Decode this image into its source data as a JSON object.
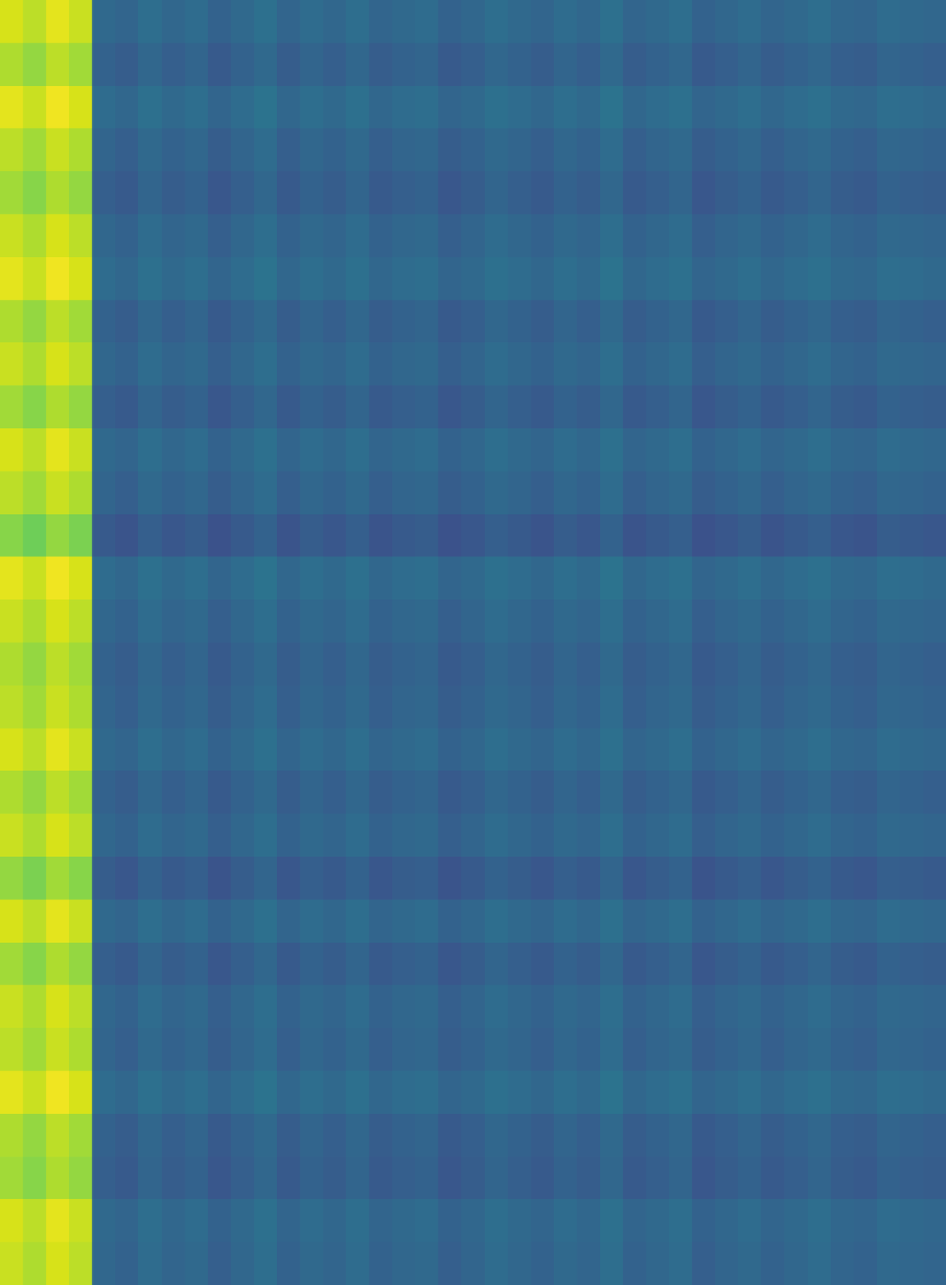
{
  "chart_data": {
    "type": "heatmap",
    "color": "Viridis",
    "tick_labels": false,
    "zlim": [
      0,
      100
    ],
    "cells": [
      [
        94,
        90,
        96,
        92,
        34,
        32,
        36,
        33,
        35,
        31,
        34,
        37,
        32,
        35,
        33,
        36,
        32,
        34,
        35,
        31,
        33,
        36,
        34,
        32,
        35,
        33,
        37,
        32,
        34,
        36,
        31,
        33,
        35,
        32,
        34,
        36,
        33,
        32,
        35,
        34,
        33
      ],
      [
        88,
        84,
        90,
        86,
        31,
        29,
        33,
        30,
        32,
        28,
        31,
        34,
        29,
        32,
        30,
        33,
        29,
        31,
        32,
        28,
        30,
        33,
        31,
        29,
        32,
        30,
        34,
        29,
        31,
        33,
        28,
        30,
        32,
        29,
        31,
        33,
        30,
        29,
        32,
        31,
        30
      ],
      [
        96,
        92,
        98,
        94,
        35,
        33,
        37,
        34,
        36,
        32,
        35,
        38,
        33,
        36,
        34,
        37,
        33,
        35,
        36,
        32,
        34,
        37,
        35,
        33,
        36,
        34,
        38,
        33,
        35,
        37,
        32,
        34,
        36,
        33,
        35,
        37,
        34,
        33,
        36,
        35,
        34
      ],
      [
        90,
        86,
        92,
        88,
        32,
        30,
        34,
        31,
        33,
        29,
        32,
        35,
        30,
        33,
        31,
        34,
        30,
        32,
        33,
        29,
        31,
        34,
        32,
        30,
        33,
        31,
        35,
        30,
        32,
        34,
        29,
        31,
        33,
        30,
        32,
        34,
        31,
        30,
        33,
        32,
        31
      ],
      [
        86,
        82,
        88,
        84,
        30,
        28,
        32,
        29,
        31,
        27,
        30,
        33,
        28,
        31,
        29,
        32,
        28,
        30,
        31,
        27,
        29,
        32,
        30,
        28,
        31,
        29,
        33,
        28,
        30,
        32,
        27,
        29,
        31,
        28,
        30,
        32,
        29,
        28,
        31,
        30,
        29
      ],
      [
        92,
        88,
        94,
        90,
        33,
        31,
        35,
        32,
        34,
        30,
        33,
        36,
        31,
        34,
        32,
        35,
        31,
        33,
        34,
        30,
        32,
        35,
        33,
        31,
        34,
        32,
        36,
        31,
        33,
        35,
        30,
        32,
        34,
        31,
        33,
        35,
        32,
        31,
        34,
        33,
        32
      ],
      [
        96,
        92,
        98,
        94,
        35,
        33,
        37,
        34,
        36,
        32,
        35,
        38,
        33,
        36,
        34,
        37,
        33,
        35,
        36,
        32,
        34,
        37,
        35,
        33,
        36,
        34,
        38,
        33,
        35,
        37,
        32,
        34,
        36,
        33,
        35,
        37,
        34,
        33,
        36,
        35,
        34
      ],
      [
        88,
        84,
        90,
        86,
        31,
        29,
        33,
        30,
        32,
        28,
        31,
        34,
        29,
        32,
        30,
        33,
        29,
        31,
        32,
        28,
        30,
        33,
        31,
        29,
        32,
        30,
        34,
        29,
        31,
        33,
        28,
        30,
        32,
        29,
        31,
        33,
        30,
        29,
        32,
        31,
        30
      ],
      [
        92,
        88,
        94,
        90,
        33,
        31,
        35,
        32,
        34,
        30,
        33,
        36,
        31,
        34,
        32,
        35,
        31,
        33,
        34,
        30,
        32,
        35,
        33,
        31,
        34,
        32,
        36,
        31,
        33,
        35,
        30,
        32,
        34,
        31,
        33,
        35,
        32,
        31,
        34,
        33,
        32
      ],
      [
        86,
        82,
        88,
        84,
        30,
        28,
        32,
        29,
        31,
        27,
        30,
        33,
        28,
        31,
        29,
        32,
        28,
        30,
        31,
        27,
        29,
        32,
        30,
        28,
        31,
        29,
        33,
        28,
        30,
        32,
        27,
        29,
        31,
        28,
        30,
        32,
        29,
        28,
        31,
        30,
        29
      ],
      [
        94,
        90,
        96,
        92,
        34,
        32,
        36,
        33,
        35,
        31,
        34,
        37,
        32,
        35,
        33,
        36,
        32,
        34,
        35,
        31,
        33,
        36,
        34,
        32,
        35,
        33,
        37,
        32,
        34,
        36,
        31,
        33,
        35,
        32,
        34,
        36,
        33,
        32,
        35,
        34,
        33
      ],
      [
        90,
        86,
        92,
        88,
        32,
        30,
        34,
        31,
        33,
        29,
        32,
        35,
        30,
        33,
        31,
        34,
        30,
        32,
        33,
        29,
        31,
        34,
        32,
        30,
        33,
        31,
        35,
        30,
        32,
        34,
        29,
        31,
        33,
        30,
        32,
        34,
        31,
        30,
        33,
        32,
        31
      ],
      [
        82,
        78,
        84,
        80,
        28,
        26,
        30,
        27,
        29,
        25,
        28,
        31,
        26,
        29,
        27,
        30,
        26,
        28,
        29,
        25,
        27,
        30,
        28,
        26,
        29,
        27,
        31,
        26,
        28,
        30,
        25,
        27,
        29,
        26,
        28,
        30,
        27,
        26,
        29,
        28,
        27
      ],
      [
        96,
        92,
        98,
        94,
        35,
        33,
        37,
        34,
        36,
        32,
        35,
        38,
        33,
        36,
        34,
        37,
        33,
        35,
        36,
        32,
        34,
        37,
        35,
        33,
        36,
        34,
        38,
        33,
        35,
        37,
        32,
        34,
        36,
        33,
        35,
        37,
        34,
        33,
        36,
        35,
        34
      ],
      [
        92,
        88,
        94,
        90,
        33,
        31,
        35,
        32,
        34,
        30,
        33,
        36,
        31,
        34,
        32,
        35,
        31,
        33,
        34,
        30,
        32,
        35,
        33,
        31,
        34,
        32,
        36,
        31,
        33,
        35,
        30,
        32,
        34,
        31,
        33,
        35,
        32,
        31,
        34,
        33,
        32
      ],
      [
        88,
        84,
        90,
        86,
        31,
        29,
        33,
        30,
        32,
        28,
        31,
        34,
        29,
        32,
        30,
        33,
        29,
        31,
        32,
        28,
        30,
        33,
        31,
        29,
        32,
        30,
        34,
        29,
        31,
        33,
        28,
        30,
        32,
        29,
        31,
        33,
        30,
        29,
        32,
        31,
        30
      ],
      [
        90,
        86,
        92,
        88,
        32,
        30,
        34,
        31,
        33,
        29,
        32,
        35,
        30,
        33,
        31,
        34,
        30,
        32,
        33,
        29,
        31,
        34,
        32,
        30,
        33,
        31,
        35,
        30,
        32,
        34,
        29,
        31,
        33,
        30,
        32,
        34,
        31,
        30,
        33,
        32,
        31
      ],
      [
        94,
        90,
        96,
        92,
        34,
        32,
        36,
        33,
        35,
        31,
        34,
        37,
        32,
        35,
        33,
        36,
        32,
        34,
        35,
        31,
        33,
        36,
        34,
        32,
        35,
        33,
        37,
        32,
        34,
        36,
        31,
        33,
        35,
        32,
        34,
        36,
        33,
        32,
        35,
        34,
        33
      ],
      [
        88,
        84,
        90,
        86,
        31,
        29,
        33,
        30,
        32,
        28,
        31,
        34,
        29,
        32,
        30,
        33,
        29,
        31,
        32,
        28,
        30,
        33,
        31,
        29,
        32,
        30,
        34,
        29,
        31,
        33,
        28,
        30,
        32,
        29,
        31,
        33,
        30,
        29,
        32,
        31,
        30
      ],
      [
        92,
        88,
        94,
        90,
        33,
        31,
        35,
        32,
        34,
        30,
        33,
        36,
        31,
        34,
        32,
        35,
        31,
        33,
        34,
        30,
        32,
        35,
        33,
        31,
        34,
        32,
        36,
        31,
        33,
        35,
        30,
        32,
        34,
        31,
        33,
        35,
        32,
        31,
        34,
        33,
        32
      ],
      [
        84,
        80,
        86,
        82,
        29,
        27,
        31,
        28,
        30,
        26,
        29,
        32,
        27,
        30,
        28,
        31,
        27,
        29,
        30,
        26,
        28,
        31,
        29,
        27,
        30,
        28,
        32,
        27,
        29,
        31,
        26,
        28,
        30,
        27,
        29,
        31,
        28,
        27,
        30,
        29,
        28
      ],
      [
        94,
        90,
        96,
        92,
        34,
        32,
        36,
        33,
        35,
        31,
        34,
        37,
        32,
        35,
        33,
        36,
        32,
        34,
        35,
        31,
        33,
        36,
        34,
        32,
        35,
        33,
        37,
        32,
        34,
        36,
        31,
        33,
        35,
        32,
        34,
        36,
        33,
        32,
        35,
        34,
        33
      ],
      [
        86,
        82,
        88,
        84,
        30,
        28,
        32,
        29,
        31,
        27,
        30,
        33,
        28,
        31,
        29,
        32,
        28,
        30,
        31,
        27,
        29,
        32,
        30,
        28,
        31,
        29,
        33,
        28,
        30,
        32,
        27,
        29,
        31,
        28,
        30,
        32,
        29,
        28,
        31,
        30,
        29
      ],
      [
        92,
        88,
        94,
        90,
        33,
        31,
        35,
        32,
        34,
        30,
        33,
        36,
        31,
        34,
        32,
        35,
        31,
        33,
        34,
        30,
        32,
        35,
        33,
        31,
        34,
        32,
        36,
        31,
        33,
        35,
        30,
        32,
        34,
        31,
        33,
        35,
        32,
        31,
        34,
        33,
        32
      ],
      [
        90,
        86,
        92,
        88,
        32,
        30,
        34,
        31,
        33,
        29,
        32,
        35,
        30,
        33,
        31,
        34,
        30,
        32,
        33,
        29,
        31,
        34,
        32,
        30,
        33,
        31,
        35,
        30,
        32,
        34,
        29,
        31,
        33,
        30,
        32,
        34,
        31,
        30,
        33,
        32,
        31
      ],
      [
        96,
        92,
        98,
        94,
        35,
        33,
        37,
        34,
        36,
        32,
        35,
        38,
        33,
        36,
        34,
        37,
        33,
        35,
        36,
        32,
        34,
        37,
        35,
        33,
        36,
        34,
        38,
        33,
        35,
        37,
        32,
        34,
        36,
        33,
        35,
        37,
        34,
        33,
        36,
        35,
        34
      ],
      [
        88,
        84,
        90,
        86,
        31,
        29,
        33,
        30,
        32,
        28,
        31,
        34,
        29,
        32,
        30,
        33,
        29,
        31,
        32,
        28,
        30,
        33,
        31,
        29,
        32,
        30,
        34,
        29,
        31,
        33,
        28,
        30,
        32,
        29,
        31,
        33,
        30,
        29,
        32,
        31,
        30
      ],
      [
        86,
        82,
        88,
        84,
        30,
        28,
        32,
        29,
        31,
        27,
        30,
        33,
        28,
        31,
        29,
        32,
        28,
        30,
        31,
        27,
        29,
        32,
        30,
        28,
        31,
        29,
        33,
        28,
        30,
        32,
        27,
        29,
        31,
        28,
        30,
        32,
        29,
        28,
        31,
        30,
        29
      ],
      [
        94,
        90,
        96,
        92,
        34,
        32,
        36,
        33,
        35,
        31,
        34,
        37,
        32,
        35,
        33,
        36,
        32,
        34,
        35,
        31,
        33,
        36,
        34,
        32,
        35,
        33,
        37,
        32,
        34,
        36,
        31,
        33,
        35,
        32,
        34,
        36,
        33,
        32,
        35,
        34,
        33
      ],
      [
        92,
        88,
        94,
        90,
        33,
        31,
        35,
        32,
        34,
        30,
        33,
        36,
        31,
        34,
        32,
        35,
        31,
        33,
        34,
        30,
        32,
        35,
        33,
        31,
        34,
        32,
        36,
        31,
        33,
        35,
        30,
        32,
        34,
        31,
        33,
        35,
        32,
        31,
        34,
        33,
        32
      ]
    ]
  }
}
